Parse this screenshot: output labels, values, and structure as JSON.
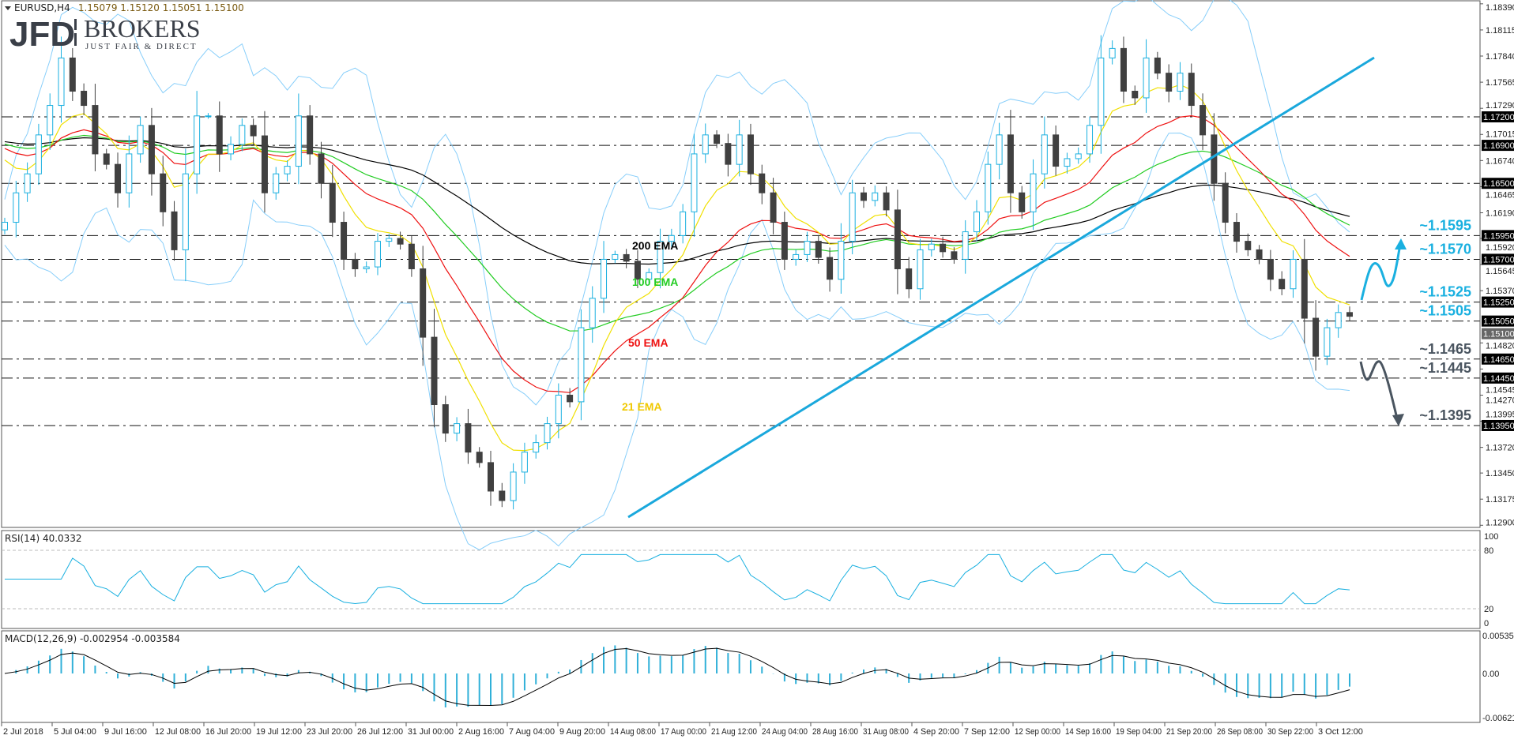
{
  "header": {
    "symbol": "EURUSD,H4",
    "ohlc": "1.15079 1.15120 1.15051 1.15100",
    "logo_main": "JFD",
    "logo_brand": "BROKERS",
    "logo_tagline": "JUST FAIR & DIRECT"
  },
  "chart_data": {
    "type": "candlestick",
    "symbol": "EURUSD",
    "timeframe": "H4",
    "ylim": [
      1.129,
      1.1839
    ],
    "price_ticks": [
      "1.18390",
      "1.18115",
      "1.17840",
      "1.17565",
      "1.17290",
      "1.17015",
      "1.16740",
      "1.16465",
      "1.16190",
      "1.15920",
      "1.15645",
      "1.15370",
      "1.14820",
      "1.14545",
      "1.14270",
      "1.13995",
      "1.13720",
      "1.13450",
      "1.13175",
      "1.12900"
    ],
    "x_tick_labels": [
      "2 Jul 2018",
      "5 Jul 04:00",
      "9 Jul 16:00",
      "12 Jul 08:00",
      "16 Jul 20:00",
      "19 Jul 12:00",
      "23 Jul 20:00",
      "26 Jul 12:00",
      "31 Jul 00:00",
      "2 Aug 16:00",
      "7 Aug 04:00",
      "9 Aug 20:00",
      "14 Aug 08:00",
      "17 Aug 00:00",
      "21 Aug 12:00",
      "24 Aug 04:00",
      "28 Aug 16:00",
      "31 Aug 08:00",
      "4 Sep 20:00",
      "7 Sep 12:00",
      "12 Sep 00:00",
      "14 Sep 16:00",
      "19 Sep 04:00",
      "21 Sep 20:00",
      "26 Sep 08:00",
      "30 Sep 22:00",
      "3 Oct 12:00"
    ],
    "close": [
      1.1609,
      1.164,
      1.166,
      1.1701,
      1.1732,
      1.1782,
      1.1747,
      1.1732,
      1.1681,
      1.167,
      1.164,
      1.1681,
      1.1711,
      1.166,
      1.162,
      1.158,
      1.166,
      1.1721,
      1.1721,
      1.1681,
      1.1691,
      1.1711,
      1.17,
      1.164,
      1.166,
      1.1668,
      1.1721,
      1.1681,
      1.165,
      1.1609,
      1.157,
      1.156,
      1.1562,
      1.1589,
      1.1592,
      1.1586,
      1.156,
      1.1488,
      1.1417,
      1.1387,
      1.1397,
      1.1367,
      1.1356,
      1.1326,
      1.1316,
      1.1346,
      1.1367,
      1.1377,
      1.1397,
      1.1427,
      1.142,
      1.1498,
      1.1529,
      1.157,
      1.1575,
      1.1568,
      1.1549,
      1.1556,
      1.1589,
      1.1595,
      1.162,
      1.1681,
      1.1701,
      1.1692,
      1.167,
      1.1701,
      1.166,
      1.164,
      1.1609,
      1.157,
      1.1575,
      1.1589,
      1.1572,
      1.1549,
      1.1589,
      1.164,
      1.1632,
      1.164,
      1.1622,
      1.156,
      1.1539,
      1.158,
      1.1586,
      1.1578,
      1.157,
      1.1599,
      1.162,
      1.167,
      1.1701,
      1.164,
      1.162,
      1.166,
      1.1701,
      1.1668,
      1.1676,
      1.1681,
      1.1711,
      1.1782,
      1.1792,
      1.1747,
      1.174,
      1.1782,
      1.1766,
      1.1747,
      1.1766,
      1.1732,
      1.1701,
      1.165,
      1.1609,
      1.1589,
      1.158,
      1.157,
      1.1549,
      1.1539,
      1.157,
      1.1508,
      1.1468,
      1.1498,
      1.1514,
      1.151
    ],
    "horizontal_levels": [
      {
        "price": "1.17200"
      },
      {
        "price": "1.16900"
      },
      {
        "price": "1.16500"
      },
      {
        "price": "1.15950",
        "label": "~1.1595",
        "color": "#1ab0e0"
      },
      {
        "price": "1.15700",
        "label": "~1.1570",
        "color": "#1ab0e0"
      },
      {
        "price": "1.15250",
        "label": "~1.1525",
        "color": "#1ab0e0"
      },
      {
        "price": "1.15050",
        "label": "~1.1505",
        "color": "#1ab0e0"
      },
      {
        "price": "1.14650",
        "label": "~1.1465",
        "color": "#4a5560"
      },
      {
        "price": "1.14450",
        "label": "~1.1445",
        "color": "#4a5560"
      },
      {
        "price": "1.13950",
        "label": "~1.1395",
        "color": "#4a5560"
      }
    ],
    "current_price": "1.15100",
    "ema_labels": [
      {
        "text": "200 EMA",
        "color": "#000000"
      },
      {
        "text": "100 EMA",
        "color": "#22cc22"
      },
      {
        "text": "50 EMA",
        "color": "#ee1111"
      },
      {
        "text": "21 EMA",
        "color": "#f0c800"
      }
    ],
    "bollinger_color": "#87cefa",
    "trendline_color": "#1aa8dc",
    "bull_color": "#1ab0e0",
    "bear_color": "#404040",
    "rsi": {
      "title": "RSI(14) 40.0332",
      "ticks": [
        "100",
        "80",
        "20",
        "0"
      ],
      "color": "#1ab0e0"
    },
    "macd": {
      "title": "MACD(12,26,9) -0.002954 -0.003584",
      "ticks": [
        "0.005356",
        "0.00",
        "-0.006218"
      ],
      "hist_color": "#30b0d8",
      "signal_color": "#000000"
    }
  }
}
